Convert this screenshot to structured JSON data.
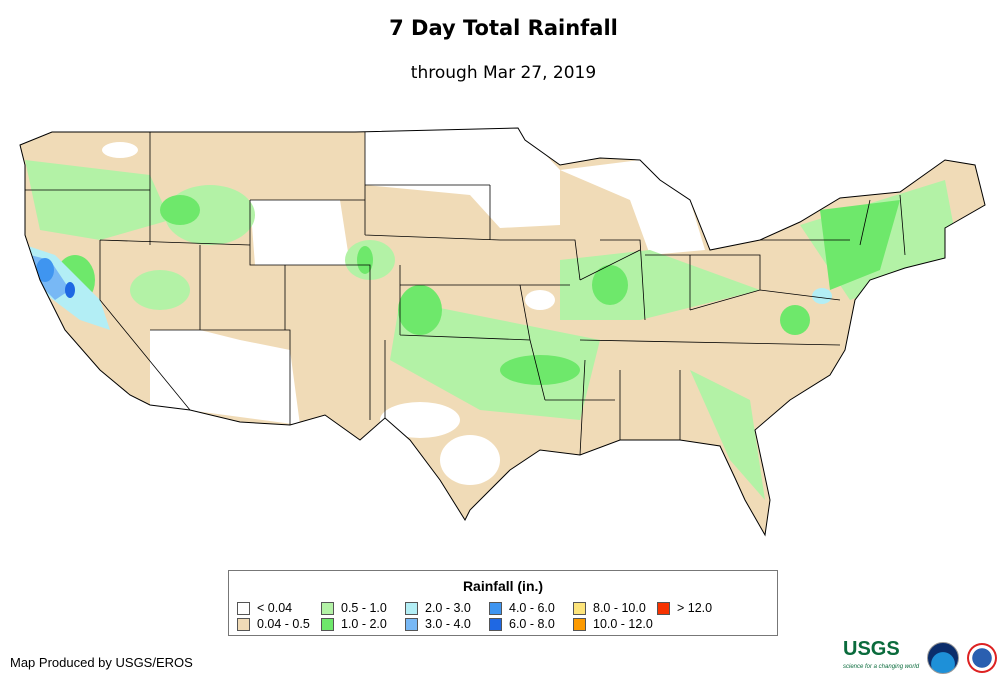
{
  "title": "7 Day Total Rainfall",
  "subtitle": "through Mar 27, 2019",
  "legend": {
    "title": "Rainfall (in.)",
    "items": [
      {
        "label": "< 0.04",
        "color": "#ffffff"
      },
      {
        "label": "0.04 - 0.5",
        "color": "#f0dbb7"
      },
      {
        "label": "0.5 - 1.0",
        "color": "#b3f2a6"
      },
      {
        "label": "1.0 - 2.0",
        "color": "#6ee86b"
      },
      {
        "label": "2.0 - 3.0",
        "color": "#b3eef5"
      },
      {
        "label": "3.0 - 4.0",
        "color": "#78b8f5"
      },
      {
        "label": "4.0 - 6.0",
        "color": "#3f95f0"
      },
      {
        "label": "6.0 - 8.0",
        "color": "#1f68e3"
      },
      {
        "label": "8.0 - 10.0",
        "color": "#fde47a"
      },
      {
        "label": "10.0 - 12.0",
        "color": "#fd9a00"
      },
      {
        "label": "> 12.0",
        "color": "#f73200"
      }
    ]
  },
  "credit": "Map Produced by USGS/EROS",
  "logos": {
    "usgs": "USGS",
    "usgs_tagline": "science for a changing world",
    "noaa": "NOAA",
    "nws": "National Weather Service"
  }
}
